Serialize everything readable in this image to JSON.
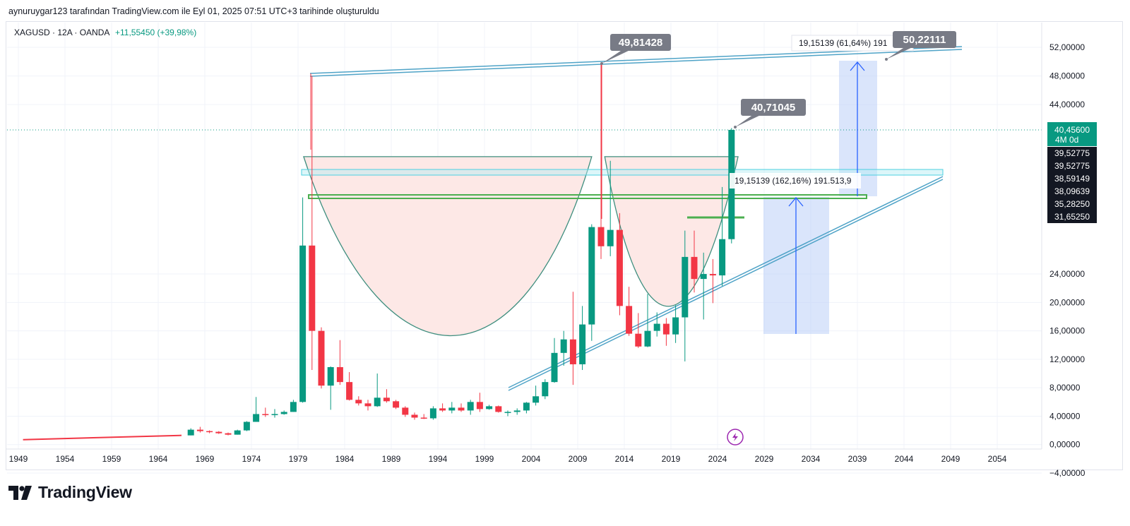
{
  "attribution": "aynuruygar123 tarafından TradingView.com ile Eyl 01, 2025 07:51 UTC+3 tarihinde oluşturuldu",
  "brand": {
    "name": "TradingView",
    "logo_icon": "tradingview-logo-icon"
  },
  "colors": {
    "up": "#089981",
    "down": "#f23645",
    "price_line": "#089981",
    "channel": "#4fa3c7",
    "zone": "#b2ebf2",
    "green_line": "#4caf50",
    "cup_fill": "#fde8e6",
    "projection": "#bcd0f7",
    "arrow": "#2962ff",
    "callout": "#787b86"
  },
  "header": {
    "symbol": "XAGUSD · 12A · OANDA",
    "change": "+11,55450 (+39,98%)"
  },
  "chart_data": {
    "type": "candlestick",
    "symbol": "XAGUSD",
    "interval": "12A",
    "broker": "OANDA",
    "x_ticks": [
      "1949",
      "1954",
      "1959",
      "1964",
      "1969",
      "1974",
      "1979",
      "1984",
      "1989",
      "1994",
      "1999",
      "2004",
      "2009",
      "2014",
      "2019",
      "2024",
      "2029",
      "2034",
      "2039",
      "2044",
      "2049",
      "2054"
    ],
    "y_ticks": [
      "52,00000",
      "48,00000",
      "44,00000",
      "24,00000",
      "20,00000",
      "16,00000",
      "12,00000",
      "8,00000",
      "4,00000",
      "0,00000",
      "−4,00000"
    ],
    "ylim": [
      -4,
      54
    ],
    "candles": [
      {
        "t": 1967.5,
        "o": 1.3,
        "h": 2.3,
        "l": 1.3,
        "c": 2.1
      },
      {
        "t": 1968.5,
        "o": 2.1,
        "h": 2.5,
        "l": 1.7,
        "c": 1.9
      },
      {
        "t": 1969.5,
        "o": 1.9,
        "h": 2.0,
        "l": 1.6,
        "c": 1.8
      },
      {
        "t": 1970.5,
        "o": 1.8,
        "h": 1.9,
        "l": 1.5,
        "c": 1.6
      },
      {
        "t": 1971.5,
        "o": 1.6,
        "h": 1.7,
        "l": 1.3,
        "c": 1.4
      },
      {
        "t": 1972.5,
        "o": 1.4,
        "h": 2.1,
        "l": 1.4,
        "c": 2.0
      },
      {
        "t": 1973.5,
        "o": 2.0,
        "h": 3.3,
        "l": 1.9,
        "c": 3.2
      },
      {
        "t": 1974.5,
        "o": 3.2,
        "h": 6.7,
        "l": 3.2,
        "c": 4.3
      },
      {
        "t": 1975.5,
        "o": 4.3,
        "h": 5.2,
        "l": 3.9,
        "c": 4.2
      },
      {
        "t": 1976.5,
        "o": 4.2,
        "h": 5.0,
        "l": 3.8,
        "c": 4.3
      },
      {
        "t": 1977.5,
        "o": 4.3,
        "h": 4.8,
        "l": 4.2,
        "c": 4.6
      },
      {
        "t": 1978.5,
        "o": 4.6,
        "h": 6.3,
        "l": 4.6,
        "c": 6.0
      },
      {
        "t": 1979.5,
        "o": 6.0,
        "h": 34.0,
        "l": 5.9,
        "c": 28.0
      },
      {
        "t": 1980.5,
        "o": 28.0,
        "h": 48.0,
        "l": 10.5,
        "c": 16.0
      },
      {
        "t": 1981.5,
        "o": 16.0,
        "h": 16.5,
        "l": 7.9,
        "c": 8.3
      },
      {
        "t": 1982.5,
        "o": 8.3,
        "h": 11.0,
        "l": 4.9,
        "c": 10.9
      },
      {
        "t": 1983.5,
        "o": 10.9,
        "h": 14.7,
        "l": 8.4,
        "c": 8.8
      },
      {
        "t": 1984.5,
        "o": 8.8,
        "h": 10.2,
        "l": 6.2,
        "c": 6.3
      },
      {
        "t": 1985.5,
        "o": 6.3,
        "h": 6.8,
        "l": 5.5,
        "c": 5.8
      },
      {
        "t": 1986.5,
        "o": 5.8,
        "h": 6.3,
        "l": 4.8,
        "c": 5.4
      },
      {
        "t": 1987.5,
        "o": 5.4,
        "h": 10.0,
        "l": 5.3,
        "c": 6.6
      },
      {
        "t": 1988.5,
        "o": 6.6,
        "h": 7.8,
        "l": 5.9,
        "c": 6.1
      },
      {
        "t": 1989.5,
        "o": 6.1,
        "h": 6.3,
        "l": 5.0,
        "c": 5.2
      },
      {
        "t": 1990.5,
        "o": 5.2,
        "h": 5.4,
        "l": 3.9,
        "c": 4.2
      },
      {
        "t": 1991.5,
        "o": 4.2,
        "h": 4.5,
        "l": 3.5,
        "c": 3.8
      },
      {
        "t": 1992.5,
        "o": 3.8,
        "h": 4.3,
        "l": 3.6,
        "c": 3.7
      },
      {
        "t": 1993.5,
        "o": 3.7,
        "h": 5.4,
        "l": 3.5,
        "c": 5.1
      },
      {
        "t": 1994.5,
        "o": 5.1,
        "h": 5.8,
        "l": 4.6,
        "c": 4.8
      },
      {
        "t": 1995.5,
        "o": 4.8,
        "h": 6.0,
        "l": 4.4,
        "c": 5.2
      },
      {
        "t": 1996.5,
        "o": 5.2,
        "h": 5.8,
        "l": 4.6,
        "c": 4.8
      },
      {
        "t": 1997.5,
        "o": 4.8,
        "h": 6.3,
        "l": 4.2,
        "c": 6.0
      },
      {
        "t": 1998.5,
        "o": 6.0,
        "h": 7.3,
        "l": 4.6,
        "c": 5.0
      },
      {
        "t": 1999.5,
        "o": 5.0,
        "h": 5.6,
        "l": 4.9,
        "c": 5.4
      },
      {
        "t": 2000.5,
        "o": 5.4,
        "h": 5.5,
        "l": 4.5,
        "c": 4.6
      },
      {
        "t": 2001.5,
        "o": 4.6,
        "h": 4.8,
        "l": 4.0,
        "c": 4.6
      },
      {
        "t": 2002.5,
        "o": 4.6,
        "h": 5.1,
        "l": 4.2,
        "c": 4.8
      },
      {
        "t": 2003.5,
        "o": 4.8,
        "h": 6.0,
        "l": 4.4,
        "c": 5.9
      },
      {
        "t": 2004.5,
        "o": 5.9,
        "h": 8.3,
        "l": 5.5,
        "c": 6.8
      },
      {
        "t": 2005.5,
        "o": 6.8,
        "h": 9.2,
        "l": 6.4,
        "c": 8.8
      },
      {
        "t": 2006.5,
        "o": 8.8,
        "h": 15.0,
        "l": 8.7,
        "c": 12.9
      },
      {
        "t": 2007.5,
        "o": 12.9,
        "h": 16.0,
        "l": 11.1,
        "c": 14.8
      },
      {
        "t": 2008.5,
        "o": 14.8,
        "h": 21.5,
        "l": 8.4,
        "c": 11.3
      },
      {
        "t": 2009.5,
        "o": 11.3,
        "h": 19.5,
        "l": 10.5,
        "c": 16.9
      },
      {
        "t": 2010.5,
        "o": 16.9,
        "h": 31.0,
        "l": 14.6,
        "c": 30.6
      },
      {
        "t": 2011.5,
        "o": 30.6,
        "h": 49.8,
        "l": 26.1,
        "c": 27.9
      },
      {
        "t": 2012.5,
        "o": 27.9,
        "h": 37.5,
        "l": 26.5,
        "c": 30.2
      },
      {
        "t": 2013.5,
        "o": 30.2,
        "h": 32.5,
        "l": 18.2,
        "c": 19.5
      },
      {
        "t": 2014.5,
        "o": 19.5,
        "h": 22.2,
        "l": 15.3,
        "c": 15.6
      },
      {
        "t": 2015.5,
        "o": 15.6,
        "h": 18.5,
        "l": 13.6,
        "c": 13.8
      },
      {
        "t": 2016.5,
        "o": 13.8,
        "h": 21.2,
        "l": 13.7,
        "c": 16.0
      },
      {
        "t": 2017.5,
        "o": 16.0,
        "h": 18.6,
        "l": 15.2,
        "c": 17.0
      },
      {
        "t": 2018.5,
        "o": 17.0,
        "h": 17.8,
        "l": 13.9,
        "c": 15.5
      },
      {
        "t": 2019.5,
        "o": 15.5,
        "h": 19.6,
        "l": 14.3,
        "c": 17.9
      },
      {
        "t": 2020.5,
        "o": 17.9,
        "h": 30.1,
        "l": 11.7,
        "c": 26.4
      },
      {
        "t": 2021.5,
        "o": 26.4,
        "h": 30.1,
        "l": 21.4,
        "c": 23.3
      },
      {
        "t": 2022.5,
        "o": 23.3,
        "h": 27.0,
        "l": 17.6,
        "c": 24.0
      },
      {
        "t": 2023.5,
        "o": 24.0,
        "h": 26.1,
        "l": 19.9,
        "c": 23.8
      },
      {
        "t": 2024.5,
        "o": 23.8,
        "h": 35.0,
        "l": 22.3,
        "c": 28.9
      },
      {
        "t": 2025.5,
        "o": 28.9,
        "h": 40.71,
        "l": 28.3,
        "c": 40.456
      }
    ],
    "pre_1967_flat": {
      "from": 1949.5,
      "to": 1966.5,
      "start": 0.7,
      "end": 1.3
    },
    "current_price": {
      "value": "40,45600",
      "countdown": "4M 0d"
    },
    "price_axis_tags": [
      {
        "label": "39,52775",
        "style": "dark"
      },
      {
        "label": "39,52775",
        "style": "dark"
      },
      {
        "label": "38,59149",
        "style": "dark"
      },
      {
        "label": "38,09639",
        "style": "dark"
      },
      {
        "label": "35,28250",
        "style": "dark"
      },
      {
        "label": "31,65250",
        "style": "dark"
      }
    ],
    "callouts": [
      "49,81428",
      "40,71045",
      "50,22111"
    ],
    "measure_labels": [
      "19,15139 (61,64%) 191",
      "19,15139 (162,16%) 191.513,9"
    ]
  }
}
